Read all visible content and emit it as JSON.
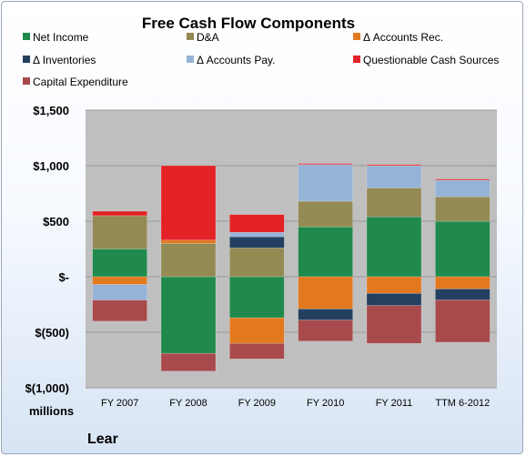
{
  "chart_data": {
    "type": "bar",
    "stacked": true,
    "title": "Free Cash Flow Components",
    "ylabel": "millions",
    "footer": "Lear",
    "categories": [
      "FY 2007",
      "FY 2008",
      "FY 2009",
      "FY 2010",
      "FY 2011",
      "TTM 6-2012"
    ],
    "ylim": [
      -1000,
      1500
    ],
    "yticks": [
      1500,
      1000,
      500,
      0,
      -500,
      -1000
    ],
    "ytick_labels": [
      "$1,500",
      "$1,000",
      "$500",
      "$-",
      "$(500)",
      "$(1,000)"
    ],
    "grid": true,
    "legend_position": "top",
    "series": [
      {
        "name": "Net Income",
        "color": "#1f8a4c",
        "values": [
          250,
          -690,
          -370,
          450,
          540,
          500
        ]
      },
      {
        "name": "D&A",
        "color": "#948a54",
        "values": [
          300,
          300,
          260,
          230,
          260,
          220
        ]
      },
      {
        "name": "Δ Accounts Rec.",
        "color": "#e3791e",
        "values": [
          -70,
          30,
          -230,
          -290,
          -150,
          -110
        ]
      },
      {
        "name": "Δ Inventories",
        "color": "#243f60",
        "values": [
          0,
          0,
          100,
          -100,
          -110,
          -100
        ]
      },
      {
        "name": "Δ Accounts Pay.",
        "color": "#95b3d7",
        "values": [
          -140,
          0,
          40,
          330,
          200,
          150
        ]
      },
      {
        "name": "Questionable Cash Sources",
        "color": "#e32226",
        "values": [
          40,
          670,
          160,
          10,
          10,
          10
        ]
      },
      {
        "name": "Capital Expenditure",
        "color": "#a84a4c",
        "values": [
          -190,
          -160,
          -140,
          -190,
          -340,
          -380
        ]
      }
    ]
  }
}
